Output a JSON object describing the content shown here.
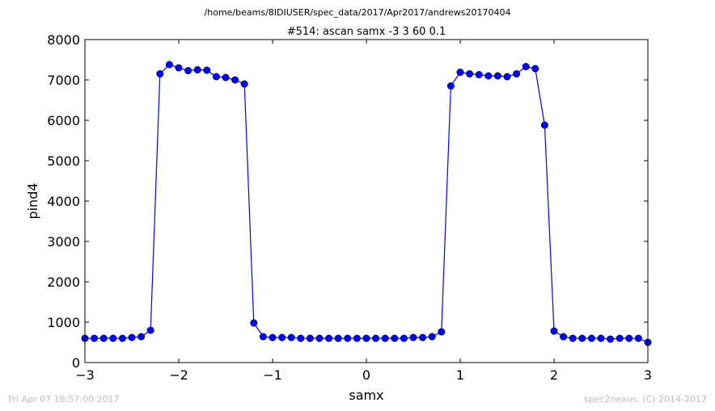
{
  "figure": {
    "suptitle": "/home/beams/8IDIUSER/spec_data/2017/Apr2017/andrews20170404",
    "footer_left": "Fri Apr 07 18:57:00 2017",
    "footer_right": "spec2nexus, (C) 2014-2017"
  },
  "chart_data": {
    "type": "line",
    "title": "#514: ascan  samx -3 3  60 0.1",
    "xlabel": "samx",
    "ylabel": "pind4",
    "xlim": [
      -3,
      3
    ],
    "ylim": [
      0,
      8000
    ],
    "xticks": [
      -3,
      -2,
      -1,
      0,
      1,
      2,
      3
    ],
    "xtick_labels": [
      "−3",
      "−2",
      "−1",
      "0",
      "1",
      "2",
      "3"
    ],
    "yticks": [
      0,
      1000,
      2000,
      3000,
      4000,
      5000,
      6000,
      7000,
      8000
    ],
    "ytick_labels": [
      "0",
      "1000",
      "2000",
      "3000",
      "4000",
      "5000",
      "6000",
      "7000",
      "8000"
    ],
    "grid": false,
    "series": [
      {
        "color": "#0000ff",
        "marker": "circle",
        "x": [
          -3.0,
          -2.9,
          -2.8,
          -2.7,
          -2.6,
          -2.5,
          -2.4,
          -2.3,
          -2.2,
          -2.1,
          -2.0,
          -1.9,
          -1.8,
          -1.7,
          -1.6,
          -1.5,
          -1.4,
          -1.3,
          -1.2,
          -1.1,
          -1.0,
          -0.9,
          -0.8,
          -0.7,
          -0.6,
          -0.5,
          -0.4,
          -0.3,
          -0.2,
          -0.1,
          0.0,
          0.1,
          0.2,
          0.3,
          0.4,
          0.5,
          0.6,
          0.7,
          0.8,
          0.9,
          1.0,
          1.1,
          1.2,
          1.3,
          1.4,
          1.5,
          1.6,
          1.7,
          1.8,
          1.9,
          2.0,
          2.1,
          2.2,
          2.3,
          2.4,
          2.5,
          2.6,
          2.7,
          2.8,
          2.9,
          3.0
        ],
        "y": [
          600,
          600,
          600,
          600,
          600,
          620,
          640,
          800,
          7150,
          7380,
          7300,
          7230,
          7250,
          7240,
          7080,
          7060,
          7000,
          6900,
          980,
          640,
          620,
          620,
          620,
          600,
          600,
          600,
          600,
          600,
          600,
          600,
          600,
          600,
          600,
          600,
          600,
          620,
          620,
          640,
          760,
          6850,
          7190,
          7150,
          7130,
          7100,
          7100,
          7080,
          7150,
          7330,
          7280,
          5880,
          780,
          640,
          600,
          600,
          600,
          600,
          580,
          600,
          600,
          600,
          500
        ]
      }
    ]
  }
}
